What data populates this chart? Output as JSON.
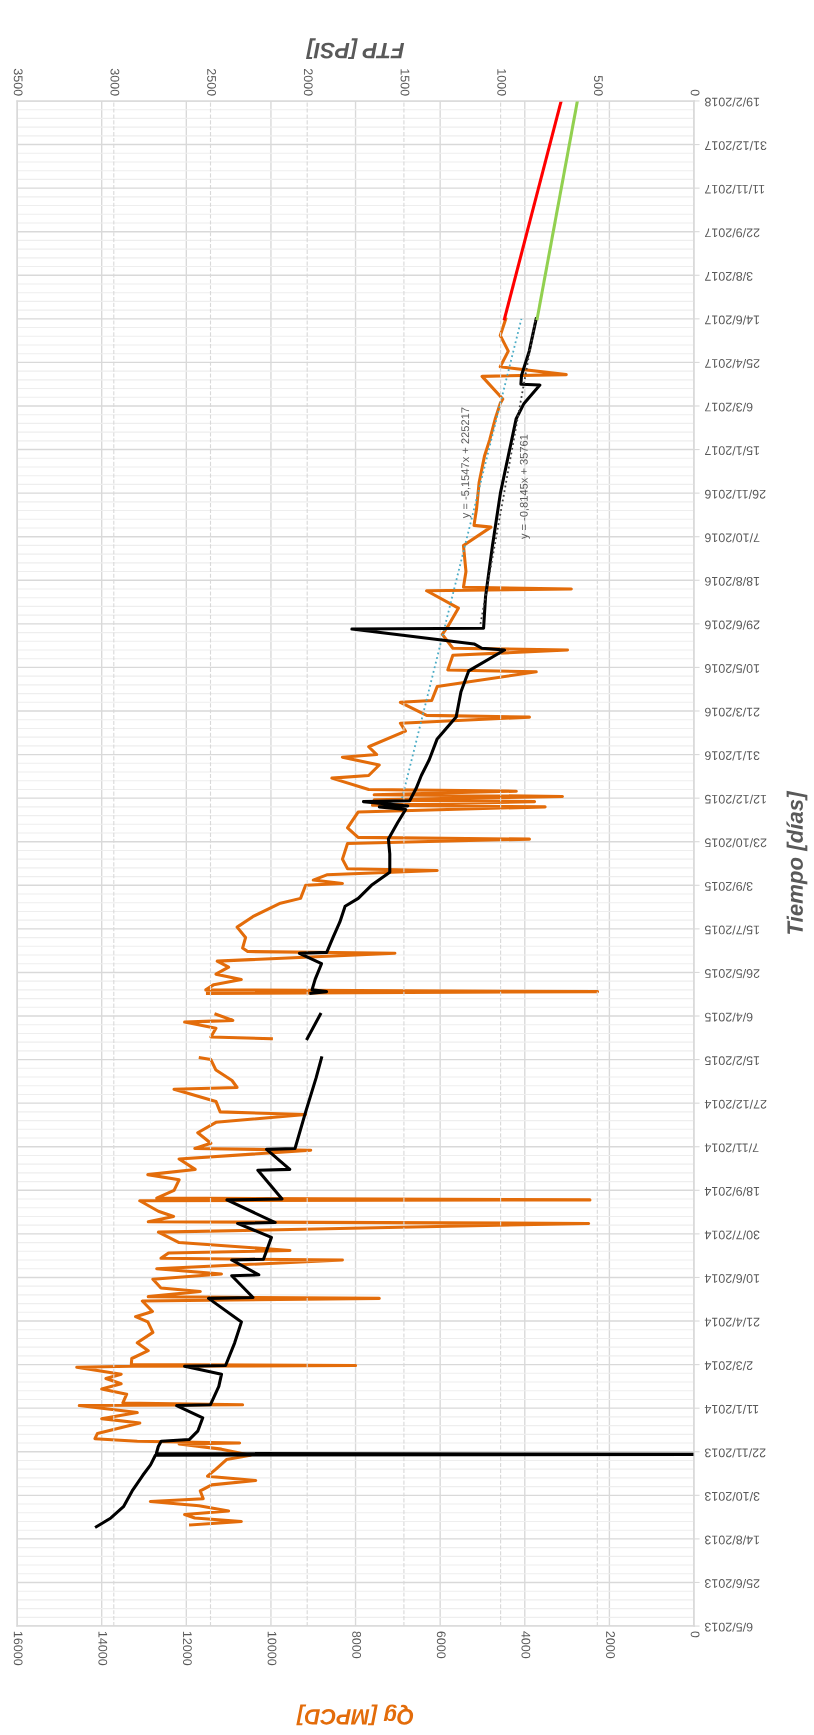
{
  "chart_data": {
    "type": "line",
    "orientation": "horizontal",
    "ylabel": "Tiempo [días]",
    "xlabel": "Qg [MPCD]",
    "x2label": "FTP [PSI]",
    "grid": true,
    "legend": false,
    "ylim": [
      "2013-05-06",
      "2018-02-19"
    ],
    "yticks": [
      {
        "value": "2013-05-06",
        "label": "6/5/2013"
      },
      {
        "value": "2013-06-25",
        "label": "25/6/2013"
      },
      {
        "value": "2013-08-14",
        "label": "14/8/2013"
      },
      {
        "value": "2013-10-03",
        "label": "3/10/2013"
      },
      {
        "value": "2013-11-22",
        "label": "22/11/2013"
      },
      {
        "value": "2014-01-11",
        "label": "11/1/2014"
      },
      {
        "value": "2014-03-02",
        "label": "2/3/2014"
      },
      {
        "value": "2014-04-21",
        "label": "21/4/2014"
      },
      {
        "value": "2014-06-10",
        "label": "10/6/2014"
      },
      {
        "value": "2014-07-30",
        "label": "30/7/2014"
      },
      {
        "value": "2014-09-18",
        "label": "18/9/2014"
      },
      {
        "value": "2014-11-07",
        "label": "7/11/2014"
      },
      {
        "value": "2014-12-27",
        "label": "27/12/2014"
      },
      {
        "value": "2015-02-15",
        "label": "15/2/2015"
      },
      {
        "value": "2015-04-06",
        "label": "6/4/2015"
      },
      {
        "value": "2015-05-26",
        "label": "26/5/2015"
      },
      {
        "value": "2015-07-15",
        "label": "15/7/2015"
      },
      {
        "value": "2015-09-03",
        "label": "3/9/2015"
      },
      {
        "value": "2015-10-23",
        "label": "23/10/2015"
      },
      {
        "value": "2015-12-12",
        "label": "12/12/2015"
      },
      {
        "value": "2016-01-31",
        "label": "31/1/2016"
      },
      {
        "value": "2016-03-21",
        "label": "21/3/2016"
      },
      {
        "value": "2016-05-10",
        "label": "10/5/2016"
      },
      {
        "value": "2016-06-29",
        "label": "29/6/2016"
      },
      {
        "value": "2016-08-18",
        "label": "18/8/2016"
      },
      {
        "value": "2016-10-07",
        "label": "7/10/2016"
      },
      {
        "value": "2016-11-26",
        "label": "26/11/2016"
      },
      {
        "value": "2017-01-15",
        "label": "15/1/2017"
      },
      {
        "value": "2017-03-06",
        "label": "6/3/2017"
      },
      {
        "value": "2017-04-25",
        "label": "25/4/2017"
      },
      {
        "value": "2017-06-14",
        "label": "14/6/2017"
      },
      {
        "value": "2017-08-03",
        "label": "3/8/2017"
      },
      {
        "value": "2017-09-22",
        "label": "22/9/2017"
      },
      {
        "value": "2017-11-11",
        "label": "11/11/2017"
      },
      {
        "value": "2017-12-31",
        "label": "31/12/2017"
      },
      {
        "value": "2018-02-19",
        "label": "19/2/2018"
      }
    ],
    "xlim": [
      16000,
      0
    ],
    "xticks": [
      0,
      2000,
      4000,
      6000,
      8000,
      10000,
      12000,
      14000,
      16000
    ],
    "x2lim": [
      3500,
      0
    ],
    "x2ticks": [
      0,
      500,
      1000,
      1500,
      2000,
      2500,
      3000,
      3500
    ],
    "annotations": [
      "y = -5,1547x + 225217",
      "y = -0,8145x + 35761"
    ],
    "series": [
      {
        "color": "#e36c0a",
        "line_style": "solid",
        "x": [
          "2013-08-30",
          "2013-09-03",
          "2013-09-07",
          "2013-09-11",
          "2013-09-15",
          "2013-09-21",
          "2013-09-26",
          "2013-09-29",
          "2013-10-08",
          "2013-10-15",
          "2013-10-20",
          "2013-10-25",
          "2013-11-02",
          "2013-11-13",
          "2013-11-18",
          "2013-11-25",
          "2013-12-01",
          "2013-12-02",
          "2013-12-04",
          "2013-12-07",
          "2013-12-13",
          "2013-12-19",
          "2013-12-25",
          "2013-12-30",
          "2014-01-06",
          "2014-01-14",
          "2014-01-15",
          "2014-01-17",
          "2014-01-27",
          "2014-02-02",
          "2014-02-08",
          "2014-02-14",
          "2014-02-19",
          "2014-02-27",
          "2014-02-28",
          "2014-03-01",
          "2014-03-02",
          "2014-03-09",
          "2014-03-18",
          "2014-03-27",
          "2014-04-08",
          "2014-04-20",
          "2014-04-26",
          "2014-05-02",
          "2014-05-14",
          "2014-05-17",
          "2014-05-19",
          "2014-05-25",
          "2014-05-29",
          "2014-06-08",
          "2014-06-14",
          "2014-06-20",
          "2014-06-30",
          "2014-07-02",
          "2014-07-08",
          "2014-07-11",
          "2014-07-20",
          "2014-08-01",
          "2014-08-11",
          "2014-08-13",
          "2014-08-19",
          "2014-08-25",
          "2014-09-06",
          "2014-09-07",
          "2014-09-09",
          "2014-09-18",
          "2014-09-30",
          "2014-10-06",
          "2014-10-12",
          "2014-10-24",
          "2014-11-03",
          "2014-11-05",
          "2014-11-11",
          "2014-11-23",
          "2014-12-05",
          "2014-12-14",
          "2014-12-17",
          "2014-12-29",
          "2015-01-12",
          "2015-01-14",
          "2015-01-22",
          "2015-02-03",
          "2015-02-15",
          "2015-02-17",
          "2015-02-28",
          "2015-03-11",
          "2015-03-13",
          "2015-03-23",
          "2015-03-30",
          "2015-04-01",
          "2015-04-08",
          "2015-04-20",
          "2015-05-02",
          "2015-05-04",
          "2015-05-06",
          "2015-05-12",
          "2015-05-18",
          "2015-05-24",
          "2015-06-01",
          "2015-06-08",
          "2015-06-17",
          "2015-06-19",
          "2015-06-23",
          "2015-07-05",
          "2015-07-17",
          "2015-07-29",
          "2015-08-13",
          "2015-08-19",
          "2015-09-03",
          "2015-09-05",
          "2015-09-09",
          "2015-09-15",
          "2015-09-20",
          "2015-09-22",
          "2015-10-03",
          "2015-10-21",
          "2015-10-26",
          "2015-10-28",
          "2015-11-08",
          "2015-11-26",
          "2015-12-02",
          "2015-12-04",
          "2015-12-08",
          "2015-12-10",
          "2015-12-14",
          "2015-12-16",
          "2015-12-20",
          "2015-12-22",
          "2016-01-04",
          "2016-01-07",
          "2016-01-19",
          "2016-01-28",
          "2016-01-31",
          "2016-02-09",
          "2016-02-27",
          "2016-03-07",
          "2016-03-14",
          "2016-03-16",
          "2016-03-31",
          "2016-04-02",
          "2016-04-18",
          "2016-05-05",
          "2016-05-07",
          "2016-05-24",
          "2016-05-30",
          "2016-06-01",
          "2016-06-17",
          "2016-06-26",
          "2016-07-17",
          "2016-08-06",
          "2016-08-08",
          "2016-08-10",
          "2016-08-28",
          "2016-09-27",
          "2016-10-18",
          "2016-10-20",
          "2016-11-08",
          "2016-12-08",
          "2017-01-08",
          "2017-01-26",
          "2017-02-19",
          "2017-03-09",
          "2017-03-14",
          "2017-04-09",
          "2017-04-11",
          "2017-04-20",
          "2017-05-08",
          "2017-05-26",
          "2017-06-14"
        ],
        "values": [
          11900,
          10700,
          11800,
          12040,
          11000,
          11700,
          12850,
          11600,
          11670,
          11400,
          10360,
          11500,
          11300,
          11050,
          10490,
          11170,
          12170,
          10740,
          13160,
          14160,
          14100,
          13600,
          13100,
          14000,
          13160,
          14530,
          10670,
          13500,
          13410,
          14000,
          13540,
          13900,
          13540,
          14590,
          13300,
          8000,
          13300,
          13290,
          12900,
          13160,
          12790,
          12910,
          13200,
          12800,
          13040,
          7440,
          12900,
          11670,
          12600,
          12790,
          11170,
          12700,
          8310,
          12600,
          12420,
          9550,
          12170,
          12660,
          2490,
          12900,
          12300,
          12660,
          13100,
          2460,
          12700,
          12290,
          12170,
          12910,
          11790,
          12170,
          9060,
          11800,
          11420,
          11730,
          11300,
          9180,
          11200,
          11300,
          12290,
          10800,
          10920,
          11300,
          11420,
          11670,
          null,
          9990,
          11420,
          11300,
          12040,
          10900,
          11300,
          null,
          11500,
          2280,
          11540,
          11350,
          10700,
          11300,
          11000,
          11270,
          7070,
          10550,
          10670,
          10600,
          10800,
          10430,
          9800,
          9300,
          9180,
          8310,
          9000,
          8680,
          6070,
          8190,
          8310,
          8190,
          3890,
          7940,
          8190,
          7940,
          3520,
          7600,
          3770,
          7560,
          3110,
          7560,
          4200,
          7690,
          8560,
          7690,
          7440,
          8310,
          7500,
          7690,
          6820,
          6940,
          3890,
          6320,
          6940,
          6200,
          6070,
          3730,
          5820,
          5700,
          2990,
          5700,
          5950,
          5820,
          5570,
          6320,
          2900,
          5450,
          5390,
          5450,
          4800,
          5200,
          5140,
          5080,
          4950,
          4830,
          4700,
          4580,
          4520,
          5010,
          3020,
          4580,
          4390,
          4580,
          4450
        ]
      },
      {
        "color": "#000000",
        "line_style": "solid",
        "axis": "x2",
        "x": [
          "2013-08-28",
          "2013-09-07",
          "2013-09-20",
          "2013-10-08",
          "2013-10-26",
          "2013-11-07",
          "2013-11-18",
          "2013-11-19",
          "2013-11-20",
          "2013-11-28",
          "2013-12-04",
          "2013-12-06",
          "2013-12-16",
          "2013-12-31",
          "2014-01-14",
          "2014-01-15",
          "2014-02-05",
          "2014-02-19",
          "2014-02-28",
          "2014-03-01",
          "2014-03-27",
          "2014-04-20",
          "2014-05-17",
          "2014-05-18",
          "2014-06-12",
          "2014-06-13",
          "2014-06-30",
          "2014-07-01",
          "2014-07-26",
          "2014-08-11",
          "2014-08-12",
          "2014-09-07",
          "2014-09-08",
          "2014-10-11",
          "2014-10-12",
          "2014-11-04",
          "2014-11-05",
          "2014-12-17",
          "2015-01-25",
          "2015-02-17",
          "2015-02-28",
          "2015-03-11",
          "2015-04-08",
          "2015-04-20",
          "2015-05-02",
          "2015-05-04",
          "2015-05-06",
          "2015-05-18",
          "2015-06-05",
          "2015-06-17",
          "2015-06-18",
          "2015-07-05",
          "2015-07-23",
          "2015-08-10",
          "2015-08-19",
          "2015-09-03",
          "2015-09-18",
          "2015-10-09",
          "2015-10-26",
          "2015-11-14",
          "2015-11-29",
          "2015-12-02",
          "2015-12-03",
          "2015-12-08",
          "2015-12-09",
          "2015-12-23",
          "2016-01-07",
          "2016-01-25",
          "2016-02-18",
          "2016-03-14",
          "2016-04-12",
          "2016-05-06",
          "2016-05-30",
          "2016-06-01",
          "2016-06-06",
          "2016-06-23",
          "2016-06-24",
          "2016-07-30",
          "2016-09-27",
          "2016-11-26",
          "2017-01-08",
          "2017-02-19",
          "2017-03-09",
          "2017-03-30",
          "2017-03-31",
          "2017-04-10",
          "2017-05-08",
          "2017-06-14"
        ],
        "values": [
          3090,
          3015,
          2950,
          2905,
          2850,
          2810,
          2785,
          0,
          2780,
          2770,
          2755,
          2610,
          2565,
          2540,
          2675,
          2500,
          2457,
          2443,
          2634,
          2422,
          2375,
          2340,
          2510,
          2280,
          2390,
          2250,
          2390,
          2226,
          2185,
          2360,
          2165,
          2415,
          2130,
          2255,
          2090,
          2210,
          2063,
          2008,
          1954,
          1926,
          null,
          2000,
          1932,
          null,
          1981,
          1900,
          1975,
          1959,
          1926,
          2040,
          1899,
          1867,
          1831,
          1804,
          1736,
          1668,
          1573,
          1573,
          1580,
          1532,
          1491,
          1627,
          1480,
          1709,
          1470,
          1437,
          1410,
          1369,
          1328,
          1230,
          1205,
          1165,
          980,
          1097,
          1137,
          1769,
          1088,
          1078,
          1042,
          1001,
          960,
          920,
          879,
          797,
          895,
          892,
          852,
          816
        ]
      },
      {
        "color": "#ff0000",
        "line_style": "solid",
        "x": [
          "2017-06-14",
          "2018-02-19"
        ],
        "values": [
          4480,
          3140
        ]
      },
      {
        "color": "#92d050",
        "line_style": "solid",
        "axis": "x2",
        "x": [
          "2017-06-14",
          "2018-02-19"
        ],
        "values": [
          811,
          603
        ]
      },
      {
        "color": "#4bacc6",
        "line_style": "dotted",
        "x": [
          "2015-12-12",
          "2017-06-14"
        ],
        "values": [
          6900,
          4080
        ]
      },
      {
        "color": "#404040",
        "line_style": "dotted",
        "axis": "x2",
        "x": [
          "2016-06-29",
          "2017-06-14"
        ],
        "values": [
          1104,
          819
        ]
      }
    ]
  }
}
